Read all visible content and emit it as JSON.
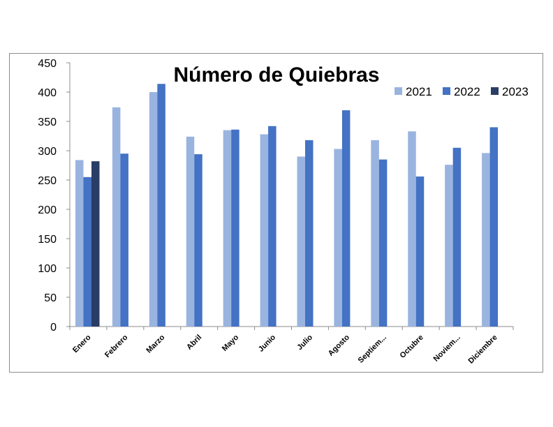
{
  "chart_data": {
    "type": "bar",
    "title": "Número de Quiebras",
    "xlabel": "",
    "ylabel": "",
    "ylim": [
      0,
      450
    ],
    "yticks": [
      "0",
      "50",
      "100",
      "150",
      "200",
      "250",
      "300",
      "350",
      "400",
      "450"
    ],
    "grid": false,
    "legend_position": "top-right",
    "categories": [
      "Enero",
      "Febrero",
      "Marzo",
      "Abril",
      "Mayo",
      "Junio",
      "Julio",
      "Agosto",
      "Septiem...",
      "Octubre",
      "Noviem...",
      "Diciembre"
    ],
    "series": [
      {
        "name": "2021",
        "color": "#9ab4e0",
        "values": [
          284,
          374,
          400,
          324,
          335,
          328,
          290,
          303,
          318,
          333,
          276,
          296
        ]
      },
      {
        "name": "2022",
        "color": "#4472c4",
        "values": [
          255,
          295,
          414,
          294,
          336,
          342,
          318,
          369,
          285,
          256,
          305,
          340
        ]
      },
      {
        "name": "2023",
        "color": "#2a3d66",
        "values": [
          282,
          null,
          null,
          null,
          null,
          null,
          null,
          null,
          null,
          null,
          null,
          null
        ]
      }
    ]
  }
}
